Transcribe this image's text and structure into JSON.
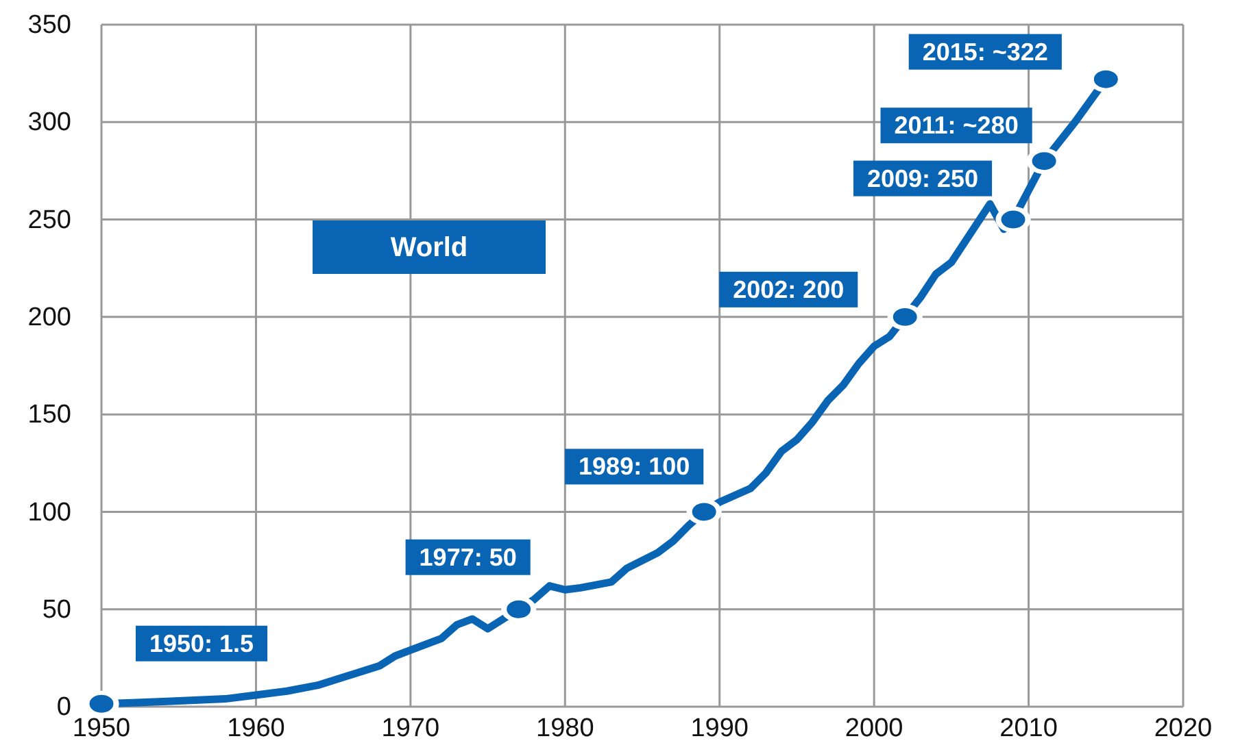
{
  "chart_data": {
    "type": "line",
    "xlim": [
      1950,
      2020
    ],
    "xticks": [
      1950,
      1960,
      1970,
      1980,
      1990,
      2000,
      2010,
      2020
    ],
    "ylim": [
      0,
      350
    ],
    "yticks": [
      0,
      50,
      100,
      150,
      200,
      250,
      300,
      350
    ],
    "grid": true,
    "line_style": "solid",
    "marker": "none",
    "title": "World",
    "annotations": [
      {
        "text": "1950: 1.5",
        "x": 1950,
        "y": 1.5
      },
      {
        "text": "1977: 50",
        "x": 1977,
        "y": 50
      },
      {
        "text": "1989: 100",
        "x": 1989,
        "y": 100
      },
      {
        "text": "2002: 200",
        "x": 2002,
        "y": 200
      },
      {
        "text": "2009: 250",
        "x": 2009,
        "y": 250
      },
      {
        "text": "2011: ~280",
        "x": 2011,
        "y": 280
      },
      {
        "text": "2015: ~322",
        "x": 2015,
        "y": 322
      }
    ],
    "series": [
      {
        "type": "line",
        "color": "#0a64b4",
        "x": [
          1950,
          1952,
          1955,
          1958,
          1960,
          1962,
          1964,
          1966,
          1968,
          1969,
          1970,
          1972,
          1973,
          1974,
          1975,
          1976,
          1977,
          1978,
          1979,
          1980,
          1981,
          1983,
          1984,
          1986,
          1987,
          1988,
          1989,
          1990,
          1992,
          1993,
          1994,
          1995,
          1996,
          1997,
          1998,
          1999,
          2000,
          2001,
          2002,
          2003,
          2004,
          2005,
          2006,
          2007.5,
          2008.4,
          2009,
          2010,
          2011,
          2012,
          2013,
          2014,
          2015
        ],
        "values": [
          1.5,
          2,
          3,
          4,
          6,
          8,
          11,
          16,
          21,
          26,
          29,
          35,
          42,
          45,
          40,
          45,
          50,
          55,
          62,
          60,
          61,
          64,
          71,
          79,
          85,
          93,
          100,
          105,
          112,
          120,
          131,
          137,
          146,
          157,
          165,
          176,
          185,
          190,
          200,
          210,
          222,
          228,
          240,
          258,
          245,
          250,
          265,
          280,
          290,
          300,
          311,
          322
        ]
      },
      {
        "type": "scatter",
        "color": "#0a64b4",
        "marker": "circle",
        "x": [
          1950,
          1977,
          1989,
          2002,
          2009,
          2011,
          2015
        ],
        "values": [
          1.5,
          50,
          100,
          200,
          250,
          280,
          322
        ]
      }
    ]
  }
}
